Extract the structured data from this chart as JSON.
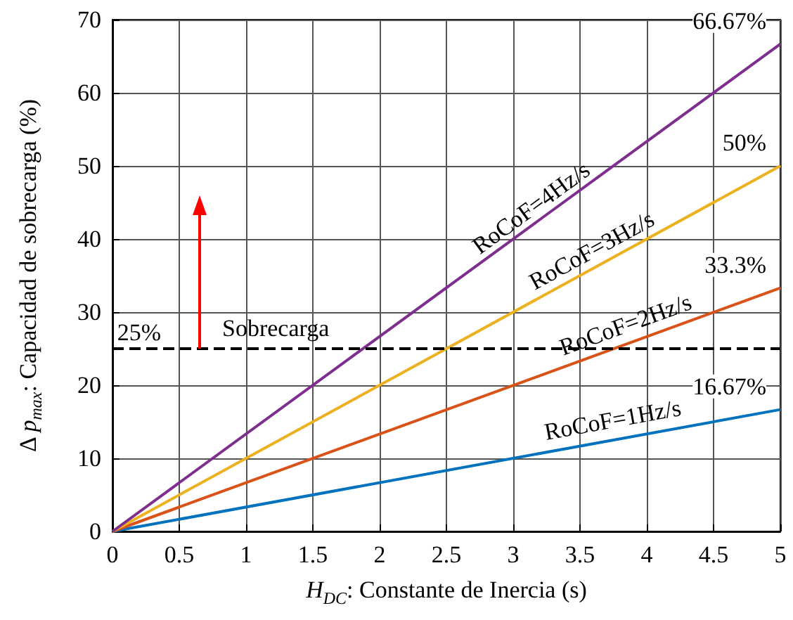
{
  "chart_data": {
    "type": "line",
    "xlabel": "H$_{DC}$:  Constante de Inercia (s)",
    "ylabel": "Δ p$_{max}$: Capacidad de sobrecarga (%)",
    "x": [
      0,
      5
    ],
    "series": [
      {
        "name": "RoCoF=1Hz/s",
        "color": "#0072bd",
        "values": [
          0,
          16.67
        ],
        "value_labels": [
          null,
          "16.67%"
        ]
      },
      {
        "name": "RoCoF=2Hz/s",
        "color": "#d95319",
        "values": [
          0,
          33.3
        ],
        "value_labels": [
          null,
          "33.3%"
        ]
      },
      {
        "name": "RoCoF=3Hz/s",
        "color": "#edb120",
        "values": [
          0,
          50
        ],
        "value_labels": [
          null,
          "50%"
        ]
      },
      {
        "name": "RoCoF=4Hz/s",
        "color": "#7e2f8e",
        "values": [
          0,
          66.67
        ],
        "value_labels": [
          null,
          "66.67%"
        ]
      }
    ],
    "xlim": [
      0,
      5
    ],
    "xticks": [
      0,
      0.5,
      1,
      1.5,
      2,
      2.5,
      3,
      3.5,
      4,
      4.5,
      5
    ],
    "ylim": [
      0,
      70
    ],
    "yticks": [
      0,
      10,
      20,
      30,
      40,
      50,
      60,
      70
    ],
    "ref_lines": [
      {
        "axis": "y",
        "value": 25,
        "label": "Sobrecarga",
        "line_style": "dashed",
        "color": "#000000"
      }
    ],
    "annotations": [
      {
        "text": "25%",
        "x": 0.2,
        "y": 25
      }
    ],
    "grid": true,
    "legend": false,
    "line_style": "solid"
  }
}
